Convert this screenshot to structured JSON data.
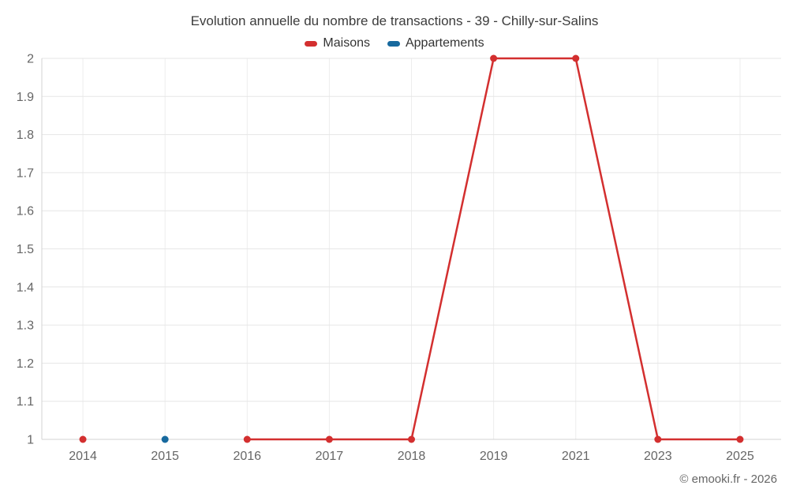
{
  "chart_data": {
    "type": "line",
    "title": "Evolution annuelle du nombre de transactions - 39 - Chilly-sur-Salins",
    "categories": [
      "2014",
      "2015",
      "2016",
      "2017",
      "2018",
      "2019",
      "2021",
      "2023",
      "2025"
    ],
    "series": [
      {
        "name": "Maisons",
        "color": "#d32f2f",
        "values": [
          1,
          null,
          1,
          1,
          1,
          2,
          2,
          1,
          1
        ]
      },
      {
        "name": "Appartements",
        "color": "#17699e",
        "values": [
          null,
          1,
          null,
          null,
          null,
          null,
          null,
          null,
          null
        ]
      }
    ],
    "ylim": [
      1,
      2
    ],
    "y_tick_step": 0.1,
    "y_tick_labels": [
      "1",
      "1.1",
      "1.2",
      "1.3",
      "1.4",
      "1.5",
      "1.6",
      "1.7",
      "1.8",
      "1.9",
      "2"
    ],
    "xlabel": "",
    "ylabel": "",
    "grid": true,
    "legend_position": "top"
  },
  "footer": {
    "credit": "© emooki.fr - 2026"
  },
  "colors": {
    "background": "#ffffff",
    "h_gridline": "#e6e6e6",
    "v_gridline": "#ededed",
    "axis_line": "#d3d3d3",
    "tick_label": "#666666",
    "title_text": "#3c3c3c",
    "legend_text": "#333333",
    "credit_text": "#666666"
  }
}
